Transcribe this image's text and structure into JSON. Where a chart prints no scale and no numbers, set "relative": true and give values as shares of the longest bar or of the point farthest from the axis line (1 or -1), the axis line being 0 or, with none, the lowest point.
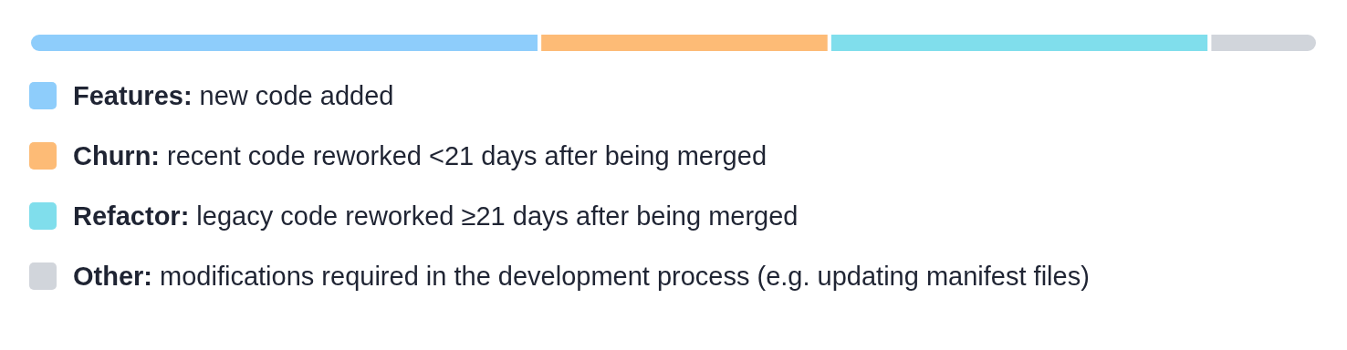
{
  "chart_data": {
    "type": "bar",
    "orientation": "horizontal",
    "stacked": true,
    "relative": true,
    "categories": [
      null
    ],
    "legend": "bottom",
    "series": [
      {
        "name": "Features: new code added",
        "color": "#8ecdfb",
        "values": [
          0.396
        ]
      },
      {
        "name": "Churn: recent code reworked <21 days after being merged",
        "color": "#fdbb76",
        "values": [
          0.225
        ]
      },
      {
        "name": "Refactor: legacy code reworked ≥21 days after being merged",
        "color": "#80deec",
        "values": [
          0.295
        ]
      },
      {
        "name": "Other: modifications required in the development process (e.g. updating manifest files)",
        "color": "#d1d5db",
        "values": [
          0.084
        ]
      }
    ]
  }
}
